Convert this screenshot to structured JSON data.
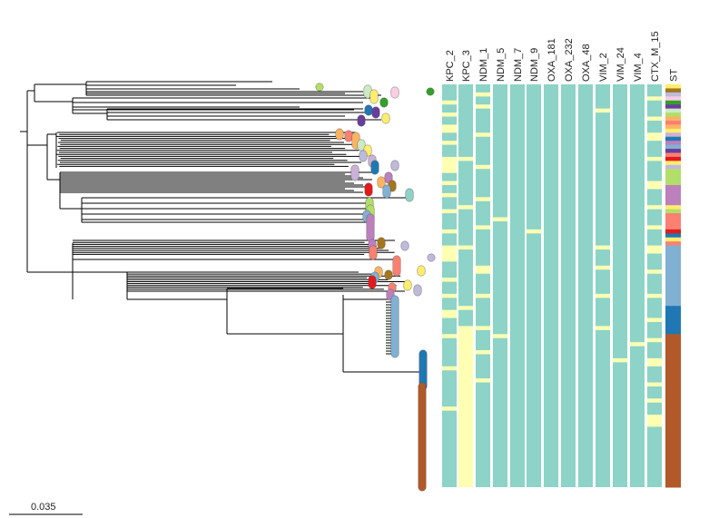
{
  "scale_bar": {
    "label": "0.035"
  },
  "columns": [
    "KPC_2",
    "KPC_3",
    "NDM_1",
    "NDM_5",
    "NDM_7",
    "NDM_9",
    "OXA_181",
    "OXA_232",
    "OXA_48",
    "VIM_2",
    "VIM_24",
    "VIM_4",
    "CTX_M_15",
    "ST"
  ],
  "colors": {
    "absent": "#8dd3c7",
    "present": "#ffffb3",
    "branch": "#000000",
    "st_palette": [
      "#b15928",
      "#1f78b4",
      "#80b1d3",
      "#fb8072",
      "#bc80bd",
      "#b3de69",
      "#e31a1c",
      "#fdb462",
      "#6a3d9a",
      "#33a02c",
      "#fccde5",
      "#bebada",
      "#ffed6f",
      "#ccebc5",
      "#a6761d",
      "#cab2d6"
    ]
  },
  "column_presence": [
    [
      [
        0.04,
        0.05
      ],
      [
        0.07,
        0.08
      ],
      [
        0.1,
        0.12
      ],
      [
        0.14,
        0.15
      ],
      [
        0.18,
        0.22
      ],
      [
        0.24,
        0.25
      ],
      [
        0.27,
        0.28
      ],
      [
        0.31,
        0.32
      ],
      [
        0.36,
        0.37
      ],
      [
        0.4,
        0.44
      ],
      [
        0.48,
        0.49
      ],
      [
        0.52,
        0.53
      ],
      [
        0.56,
        0.58
      ],
      [
        0.62,
        0.63
      ],
      [
        0.7,
        0.71
      ],
      [
        0.8,
        0.81
      ]
    ],
    [
      [
        0.18,
        0.19
      ],
      [
        0.3,
        0.31
      ],
      [
        0.4,
        0.41
      ],
      [
        0.55,
        0.56
      ],
      [
        0.6,
        1.0
      ]
    ],
    [
      [
        0.02,
        0.03
      ],
      [
        0.05,
        0.06
      ],
      [
        0.12,
        0.13
      ],
      [
        0.2,
        0.21
      ],
      [
        0.28,
        0.29
      ],
      [
        0.35,
        0.36
      ],
      [
        0.45,
        0.47
      ],
      [
        0.52,
        0.53
      ],
      [
        0.6,
        0.61
      ],
      [
        0.66,
        0.67
      ],
      [
        0.73,
        0.74
      ]
    ],
    [
      [
        0.33,
        0.34
      ],
      [
        0.62,
        0.63
      ]
    ],
    [],
    [
      [
        0.36,
        0.37
      ]
    ],
    [],
    [],
    [],
    [
      [
        0.06,
        0.07
      ],
      [
        0.4,
        0.41
      ],
      [
        0.45,
        0.46
      ],
      [
        0.52,
        0.53
      ],
      [
        0.6,
        0.61
      ]
    ],
    [
      [
        0.68,
        0.69
      ]
    ],
    [
      [
        0.64,
        0.65
      ]
    ],
    [
      [
        0.03,
        0.04
      ],
      [
        0.08,
        0.09
      ],
      [
        0.12,
        0.14
      ],
      [
        0.18,
        0.19
      ],
      [
        0.24,
        0.26
      ],
      [
        0.3,
        0.31
      ],
      [
        0.35,
        0.36
      ],
      [
        0.4,
        0.42
      ],
      [
        0.46,
        0.47
      ],
      [
        0.52,
        0.53
      ],
      [
        0.58,
        0.59
      ],
      [
        0.63,
        0.64
      ],
      [
        0.68,
        0.7
      ],
      [
        0.74,
        0.75
      ],
      [
        0.78,
        0.79
      ],
      [
        0.82,
        0.85
      ]
    ]
  ],
  "st_blocks": [
    {
      "from": 0.0,
      "to": 0.01,
      "color": "#ffed6f"
    },
    {
      "from": 0.01,
      "to": 0.02,
      "color": "#a6761d"
    },
    {
      "from": 0.02,
      "to": 0.03,
      "color": "#bebada"
    },
    {
      "from": 0.03,
      "to": 0.04,
      "color": "#fccde5"
    },
    {
      "from": 0.04,
      "to": 0.05,
      "color": "#33a02c"
    },
    {
      "from": 0.05,
      "to": 0.06,
      "color": "#6a3d9a"
    },
    {
      "from": 0.06,
      "to": 0.07,
      "color": "#ccebc5"
    },
    {
      "from": 0.07,
      "to": 0.08,
      "color": "#b3de69"
    },
    {
      "from": 0.08,
      "to": 0.09,
      "color": "#fdb462"
    },
    {
      "from": 0.09,
      "to": 0.1,
      "color": "#fb8072"
    },
    {
      "from": 0.1,
      "to": 0.11,
      "color": "#fdb462"
    },
    {
      "from": 0.11,
      "to": 0.12,
      "color": "#ffed6f"
    },
    {
      "from": 0.12,
      "to": 0.13,
      "color": "#cab2d6"
    },
    {
      "from": 0.13,
      "to": 0.14,
      "color": "#1f78b4"
    },
    {
      "from": 0.14,
      "to": 0.15,
      "color": "#bc80bd"
    },
    {
      "from": 0.15,
      "to": 0.16,
      "color": "#80b1d3"
    },
    {
      "from": 0.16,
      "to": 0.17,
      "color": "#6a3d9a"
    },
    {
      "from": 0.17,
      "to": 0.18,
      "color": "#fb8072"
    },
    {
      "from": 0.18,
      "to": 0.19,
      "color": "#e31a1c"
    },
    {
      "from": 0.19,
      "to": 0.2,
      "color": "#ffed6f"
    },
    {
      "from": 0.2,
      "to": 0.21,
      "color": "#bebada"
    },
    {
      "from": 0.21,
      "to": 0.25,
      "color": "#b3de69"
    },
    {
      "from": 0.25,
      "to": 0.3,
      "color": "#bc80bd"
    },
    {
      "from": 0.3,
      "to": 0.31,
      "color": "#ffed6f"
    },
    {
      "from": 0.31,
      "to": 0.32,
      "color": "#b3de69"
    },
    {
      "from": 0.32,
      "to": 0.36,
      "color": "#fb8072"
    },
    {
      "from": 0.36,
      "to": 0.37,
      "color": "#e31a1c"
    },
    {
      "from": 0.37,
      "to": 0.38,
      "color": "#1f78b4"
    },
    {
      "from": 0.38,
      "to": 0.39,
      "color": "#ffed6f"
    },
    {
      "from": 0.39,
      "to": 0.4,
      "color": "#fb8072"
    },
    {
      "from": 0.4,
      "to": 0.55,
      "color": "#80b1d3"
    },
    {
      "from": 0.55,
      "to": 0.58,
      "color": "#1f78b4"
    },
    {
      "from": 0.58,
      "to": 0.62,
      "color": "#1f78b4"
    },
    {
      "from": 0.62,
      "to": 1.0,
      "color": "#b15928"
    }
  ],
  "clusters": [
    {
      "y": 98,
      "y2": 104,
      "x": 405,
      "color": "#ccebc5"
    },
    {
      "y": 96,
      "y2": 96,
      "x": 352,
      "color": "#b3de69"
    },
    {
      "y": 100,
      "y2": 104,
      "x": 435,
      "color": "#fccde5"
    },
    {
      "y": 101,
      "y2": 101,
      "x": 474,
      "color": "#33a02c"
    },
    {
      "y": 103,
      "y2": 110,
      "x": 412,
      "color": "#ffed6f"
    },
    {
      "y": 112,
      "y2": 114,
      "x": 423,
      "color": "#33a02c"
    },
    {
      "y": 120,
      "y2": 123,
      "x": 406,
      "color": "#1f78b4"
    },
    {
      "y": 122,
      "y2": 126,
      "x": 414,
      "color": "#6a3d9a"
    },
    {
      "y": 129,
      "y2": 132,
      "x": 425,
      "color": "#ffed6f"
    },
    {
      "y": 131,
      "y2": 135,
      "x": 398,
      "color": "#6a3d9a"
    },
    {
      "y": 146,
      "y2": 150,
      "x": 374,
      "color": "#fdb462"
    },
    {
      "y": 148,
      "y2": 152,
      "x": 384,
      "color": "#fb8072"
    },
    {
      "y": 150,
      "y2": 160,
      "x": 392,
      "color": "#fdb462"
    },
    {
      "y": 158,
      "y2": 162,
      "x": 398,
      "color": "#ccebc5"
    },
    {
      "y": 164,
      "y2": 168,
      "x": 405,
      "color": "#ffed6f"
    },
    {
      "y": 170,
      "y2": 174,
      "x": 400,
      "color": "#bebada"
    },
    {
      "y": 175,
      "y2": 180,
      "x": 410,
      "color": "#cab2d6"
    },
    {
      "y": 181,
      "y2": 184,
      "x": 435,
      "color": "#bebada"
    },
    {
      "y": 181,
      "y2": 188,
      "x": 413,
      "color": "#1f78b4"
    },
    {
      "y": 186,
      "y2": 195,
      "x": 391,
      "color": "#cab2d6"
    },
    {
      "y": 194,
      "y2": 198,
      "x": 428,
      "color": "#bc80bd"
    },
    {
      "y": 199,
      "y2": 203,
      "x": 420,
      "color": "#fdb462"
    },
    {
      "y": 203,
      "y2": 207,
      "x": 432,
      "color": "#a6761d"
    },
    {
      "y": 206,
      "y2": 212,
      "x": 406,
      "color": "#e31a1c"
    },
    {
      "y": 208,
      "y2": 214,
      "x": 426,
      "color": "#80b1d3"
    },
    {
      "y": 212,
      "y2": 218,
      "x": 451,
      "color": "#8dd3c7"
    },
    {
      "y": 222,
      "y2": 235,
      "x": 407,
      "color": "#b3de69"
    },
    {
      "y": 230,
      "y2": 246,
      "x": 408,
      "color": "#b3de69"
    },
    {
      "y": 236,
      "y2": 241,
      "x": 404,
      "color": "#80b1d3"
    },
    {
      "y": 240,
      "y2": 262,
      "x": 408,
      "color": "#bc80bd"
    },
    {
      "y": 266,
      "y2": 270,
      "x": 420,
      "color": "#a6761d"
    },
    {
      "y": 268,
      "y2": 272,
      "x": 410,
      "color": "#bc80bd"
    },
    {
      "y": 270,
      "y2": 272,
      "x": 446,
      "color": "#bebada"
    },
    {
      "y": 275,
      "y2": 282,
      "x": 411,
      "color": "#fb8072"
    },
    {
      "y": 284,
      "y2": 284,
      "x": 475,
      "color": "#bebada"
    },
    {
      "y": 286,
      "y2": 300,
      "x": 437,
      "color": "#fb8072"
    },
    {
      "y": 297,
      "y2": 300,
      "x": 464,
      "color": "#ffed6f"
    },
    {
      "y": 298,
      "y2": 302,
      "x": 417,
      "color": "#fdb462"
    },
    {
      "y": 302,
      "y2": 304,
      "x": 428,
      "color": "#a6761d"
    },
    {
      "y": 304,
      "y2": 308,
      "x": 413,
      "color": "#80b1d3"
    },
    {
      "y": 308,
      "y2": 314,
      "x": 410,
      "color": "#e31a1c"
    },
    {
      "y": 313,
      "y2": 316,
      "x": 449,
      "color": "#ffed6f"
    },
    {
      "y": 316,
      "y2": 318,
      "x": 432,
      "color": "#fb8072"
    },
    {
      "y": 318,
      "y2": 322,
      "x": 460,
      "color": "#bebada"
    },
    {
      "y": 323,
      "y2": 327,
      "x": 430,
      "color": "#bc80bd"
    },
    {
      "y": 330,
      "y2": 390,
      "x": 435,
      "color": "#80b1d3"
    },
    {
      "y": 390,
      "y2": 426,
      "x": 466,
      "color": "#1f78b4"
    },
    {
      "y": 426,
      "y2": 537,
      "x": 465,
      "color": "#b15928"
    }
  ]
}
